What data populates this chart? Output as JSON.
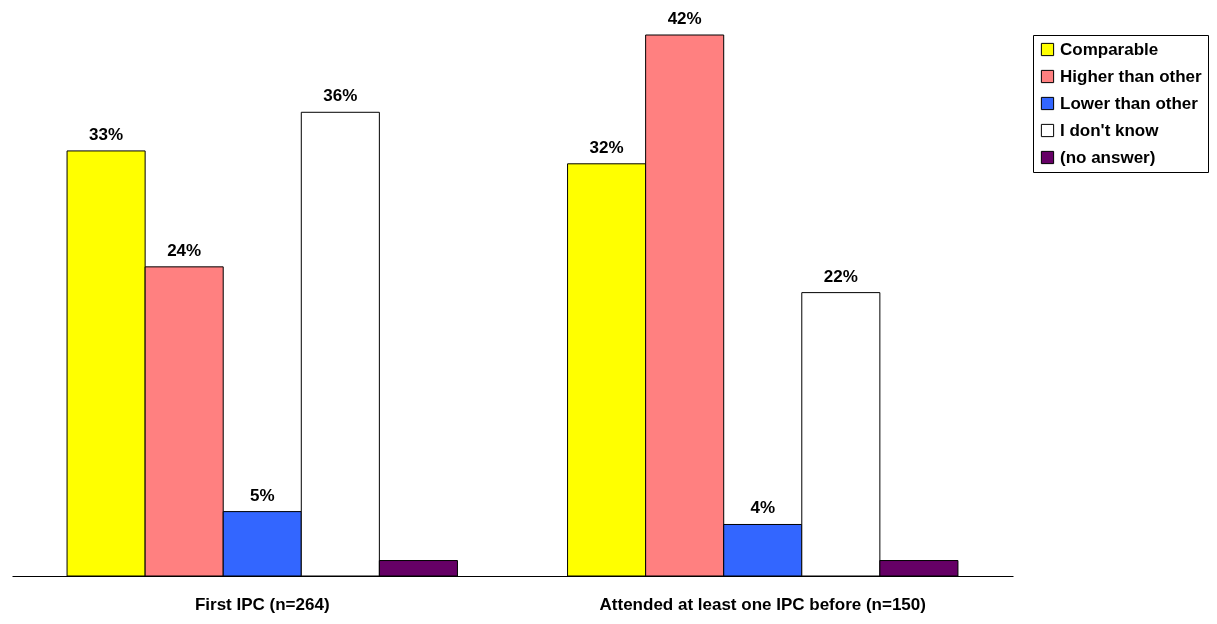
{
  "chart_data": {
    "type": "bar",
    "categories": [
      "First IPC (n=264)",
      "Attended at least one IPC before (n=150)"
    ],
    "series": [
      {
        "name": "Comparable",
        "color": "#ffff00",
        "values": [
          33,
          32
        ],
        "value_labels": [
          "33%",
          "32%"
        ]
      },
      {
        "name": "Higher than other",
        "color": "#ff8080",
        "values": [
          24,
          42
        ],
        "value_labels": [
          "24%",
          "42%"
        ]
      },
      {
        "name": "Lower than other",
        "color": "#3366ff",
        "values": [
          5,
          4
        ],
        "value_labels": [
          "5%",
          "4%"
        ]
      },
      {
        "name": "I don't know",
        "color": "#ffffff",
        "values": [
          36,
          22
        ],
        "value_labels": [
          "36%",
          "22%"
        ]
      },
      {
        "name": "(no answer)",
        "color": "#660066",
        "values": [
          1.2,
          1.2
        ],
        "value_labels": [
          null,
          null
        ]
      }
    ],
    "legend": "right",
    "grid": false
  }
}
